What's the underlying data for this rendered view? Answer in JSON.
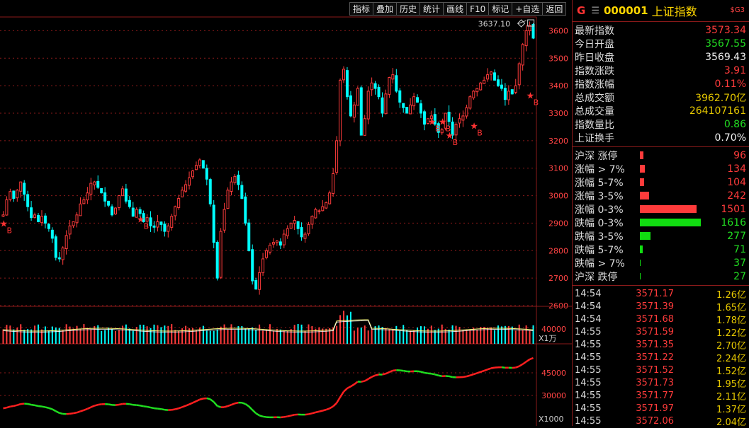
{
  "toolbar": {
    "buttons": [
      "指标",
      "叠加",
      "历史",
      "统计",
      "画线",
      "F10",
      "标记",
      "+自选",
      "返回"
    ]
  },
  "chart": {
    "max_label": "3637.10",
    "price_ticks": [
      "3600",
      "3500",
      "3400",
      "3300",
      "3200",
      "3100",
      "3000",
      "2900",
      "2800",
      "2700",
      "2600"
    ],
    "volume_tick": "40000",
    "volume_unit": "X1万",
    "indicator_ticks": [
      "45000",
      "30000"
    ],
    "indicator_unit": "X1000",
    "buy_marker": "B",
    "colors": {
      "up": "#ff3b3b",
      "down": "#00ffff",
      "grid": "#8b1a1a",
      "ma": "#ffff80",
      "ind_up": "#ff2020",
      "ind_down": "#20dd20"
    }
  },
  "chart_data": {
    "type": "candlestick",
    "ylim": [
      2600,
      3650
    ],
    "closes": [
      2930,
      2985,
      3015,
      2990,
      3020,
      3050,
      3005,
      2960,
      2920,
      2930,
      2905,
      2925,
      2900,
      2880,
      2845,
      2775,
      2770,
      2810,
      2855,
      2890,
      2905,
      2930,
      2970,
      2985,
      3010,
      3045,
      3050,
      3030,
      3010,
      2980,
      2965,
      2930,
      2955,
      3000,
      3025,
      2980,
      2960,
      2925,
      2950,
      2935,
      2905,
      2920,
      2890,
      2885,
      2905,
      2895,
      2870,
      2890,
      2925,
      2960,
      2990,
      3020,
      3040,
      3065,
      3090,
      3110,
      3130,
      3100,
      3060,
      2970,
      2830,
      2700,
      2870,
      2950,
      3020,
      3050,
      3070,
      3040,
      2990,
      2900,
      2800,
      2690,
      2660,
      2720,
      2770,
      2800,
      2820,
      2830,
      2835,
      2820,
      2860,
      2880,
      2900,
      2910,
      2880,
      2850,
      2860,
      2895,
      2925,
      2950,
      2945,
      2960,
      2975,
      3010,
      3080,
      3200,
      3420,
      3460,
      3360,
      3290,
      3330,
      3390,
      3220,
      3280,
      3380,
      3410,
      3390,
      3360,
      3300,
      3370,
      3430,
      3440,
      3380,
      3340,
      3320,
      3300,
      3330,
      3360,
      3340,
      3300,
      3260,
      3280,
      3290,
      3260,
      3230,
      3240,
      3300,
      3270,
      3220,
      3260,
      3280,
      3290,
      3320,
      3360,
      3380,
      3390,
      3410,
      3420,
      3440,
      3450,
      3420,
      3400,
      3390,
      3350,
      3380,
      3370,
      3400,
      3480,
      3550,
      3600,
      3620,
      3573
    ],
    "buy_signals": [
      {
        "date_index": 0,
        "price": 2900
      },
      {
        "date_index": 39,
        "price": 2915
      },
      {
        "date_index": 122,
        "price": 3270
      },
      {
        "date_index": 125,
        "price": 3270
      },
      {
        "date_index": 127,
        "price": 3220
      },
      {
        "date_index": 134,
        "price": 3255
      },
      {
        "date_index": 150,
        "price": 3365
      }
    ]
  },
  "panel": {
    "market_flag": "G",
    "menu_glyph": "☰",
    "code": "000001",
    "name": "上证指数",
    "sg": "$G3",
    "stats": [
      {
        "label": "最新指数",
        "value": "3573.34",
        "color": "red"
      },
      {
        "label": "今日开盘",
        "value": "3567.55",
        "color": "green"
      },
      {
        "label": "昨日收盘",
        "value": "3569.43",
        "color": "white"
      },
      {
        "label": "指数涨跌",
        "value": "3.91",
        "color": "red"
      },
      {
        "label": "指数涨幅",
        "value": "0.11%",
        "color": "red"
      },
      {
        "label": "总成交额",
        "value": "3962.70亿",
        "color": "yellow"
      },
      {
        "label": "总成交量",
        "value": "264107161",
        "color": "yellow"
      },
      {
        "label": "指数量比",
        "value": "0.86",
        "color": "green"
      },
      {
        "label": "上证换手",
        "value": "0.70%",
        "color": "white"
      }
    ],
    "breadth": [
      {
        "label": "沪深 涨停",
        "value": "96",
        "color": "red",
        "share": 0.064
      },
      {
        "label": "涨幅 > 7%",
        "value": "134",
        "color": "red",
        "share": 0.089
      },
      {
        "label": "涨幅 5-7%",
        "value": "104",
        "color": "red",
        "share": 0.069
      },
      {
        "label": "涨幅 3-5%",
        "value": "242",
        "color": "red",
        "share": 0.161
      },
      {
        "label": "涨幅 0-3%",
        "value": "1501",
        "color": "red",
        "share": 1.0
      },
      {
        "label": "跌幅 0-3%",
        "value": "1616",
        "color": "green",
        "share": 1.0
      },
      {
        "label": "跌幅 3-5%",
        "value": "277",
        "color": "green",
        "share": 0.171
      },
      {
        "label": "跌幅 5-7%",
        "value": "71",
        "color": "green",
        "share": 0.044
      },
      {
        "label": "跌幅 > 7%",
        "value": "37",
        "color": "green",
        "share": 0.023
      },
      {
        "label": "沪深 跌停",
        "value": "27",
        "color": "green",
        "share": 0.017
      }
    ],
    "ticks": [
      {
        "time": "14:54",
        "price": "3571.17",
        "vol": "1.26亿"
      },
      {
        "time": "14:54",
        "price": "3571.39",
        "vol": "1.65亿"
      },
      {
        "time": "14:54",
        "price": "3571.68",
        "vol": "1.78亿"
      },
      {
        "time": "14:55",
        "price": "3571.59",
        "vol": "1.22亿"
      },
      {
        "time": "14:55",
        "price": "3571.35",
        "vol": "2.70亿"
      },
      {
        "time": "14:55",
        "price": "3571.22",
        "vol": "2.24亿"
      },
      {
        "time": "14:55",
        "price": "3571.52",
        "vol": "1.52亿"
      },
      {
        "time": "14:55",
        "price": "3571.73",
        "vol": "1.95亿"
      },
      {
        "time": "14:55",
        "price": "3571.77",
        "vol": "2.11亿"
      },
      {
        "time": "14:55",
        "price": "3571.97",
        "vol": "1.37亿"
      },
      {
        "time": "14:55",
        "price": "3572.06",
        "vol": "2.04亿"
      }
    ]
  }
}
